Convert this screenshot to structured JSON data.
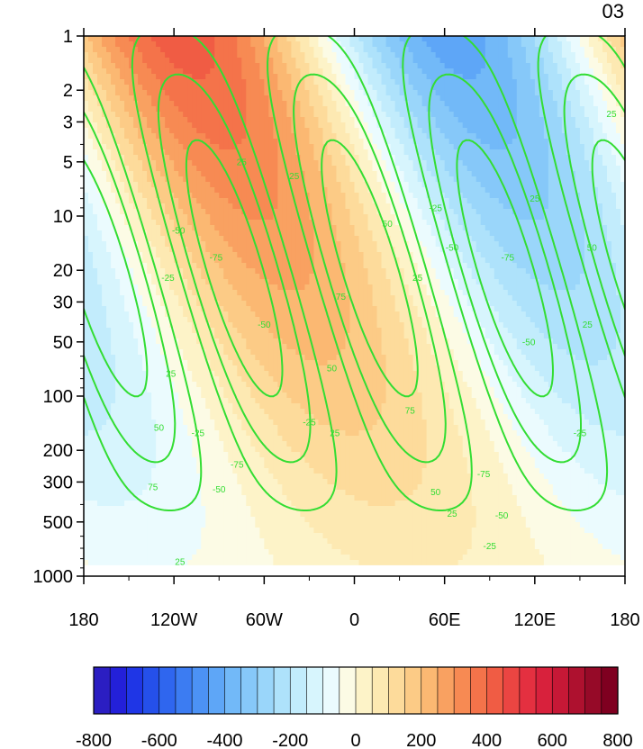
{
  "chart_data": {
    "type": "heatmap",
    "title": "",
    "panel_label": "03",
    "xlabel": "",
    "ylabel": "",
    "x_range": [
      -180,
      180
    ],
    "y_range": [
      1000,
      1
    ],
    "y_scale": "log",
    "y_reversed": true,
    "x_ticks": [
      {
        "value": -180,
        "label": "180"
      },
      {
        "value": -120,
        "label": "120W"
      },
      {
        "value": -60,
        "label": "60W"
      },
      {
        "value": 0,
        "label": "0"
      },
      {
        "value": 60,
        "label": "60E"
      },
      {
        "value": 120,
        "label": "120E"
      },
      {
        "value": 180,
        "label": "180"
      }
    ],
    "y_ticks": [
      {
        "value": 1,
        "label": "1"
      },
      {
        "value": 2,
        "label": "2"
      },
      {
        "value": 3,
        "label": "3"
      },
      {
        "value": 5,
        "label": "5"
      },
      {
        "value": 10,
        "label": "10"
      },
      {
        "value": 20,
        "label": "20"
      },
      {
        "value": 30,
        "label": "30"
      },
      {
        "value": 50,
        "label": "50"
      },
      {
        "value": 100,
        "label": "100"
      },
      {
        "value": 200,
        "label": "200"
      },
      {
        "value": 300,
        "label": "300"
      },
      {
        "value": 500,
        "label": "500"
      },
      {
        "value": 1000,
        "label": "1000"
      }
    ],
    "shading_levels": [
      -800,
      -750,
      -700,
      -650,
      -600,
      -550,
      -500,
      -450,
      -400,
      -350,
      -300,
      -250,
      -200,
      -150,
      -100,
      -50,
      0,
      50,
      100,
      150,
      200,
      250,
      300,
      350,
      400,
      450,
      500,
      550,
      600,
      650,
      700,
      750,
      800
    ],
    "colorbar_labels": [
      "-800",
      "-600",
      "-400",
      "-200",
      "0",
      "200",
      "400",
      "600",
      "800"
    ],
    "colorbar_colors": [
      "#2b1ec2",
      "#2320d9",
      "#1f36e6",
      "#2550ea",
      "#2f66ef",
      "#3c7cf2",
      "#4c92f5",
      "#5ea6f7",
      "#72b9f8",
      "#86c8f9",
      "#9ad6fa",
      "#aee2fb",
      "#c2ecfc",
      "#d7f5fd",
      "#ebfbfe",
      "#fcfbe5",
      "#fdf3c8",
      "#fde9b2",
      "#fddb9b",
      "#fccb86",
      "#fbb872",
      "#f9a161",
      "#f78a53",
      "#f4734a",
      "#f05c44",
      "#eb4542",
      "#e43040",
      "#d8213c",
      "#c61836",
      "#ae112f",
      "#960a28",
      "#7f0020"
    ],
    "shading_field": {
      "description_of_model": "z = A * sin(lon - phase(p)) with amplitude decreasing with pressure",
      "max_amplitude_top": 430,
      "min_amplitude_bottom": 50
    },
    "contour_levels": [
      -75,
      -50,
      -25,
      25,
      50,
      75
    ],
    "contour_style": {
      "positive": "solid",
      "negative": "dashed",
      "color": "#33dd33"
    },
    "contour_labels": [
      {
        "text": "25",
        "lon": -122,
        "p": 75
      },
      {
        "text": "50",
        "lon": -130,
        "p": 150
      },
      {
        "text": "75",
        "lon": -134,
        "p": 320
      },
      {
        "text": "25",
        "lon": -116,
        "p": 830
      },
      {
        "text": "-25",
        "lon": -124,
        "p": 22
      },
      {
        "text": "-50",
        "lon": -117,
        "p": 12
      },
      {
        "text": "-75",
        "lon": -92,
        "p": 17
      },
      {
        "text": "-50",
        "lon": -60,
        "p": 40
      },
      {
        "text": "-25",
        "lon": -30,
        "p": 140
      },
      {
        "text": "-25",
        "lon": -104,
        "p": 160
      },
      {
        "text": "-75",
        "lon": -78,
        "p": 240
      },
      {
        "text": "-50",
        "lon": -90,
        "p": 330
      },
      {
        "text": "25",
        "lon": -75,
        "p": 5
      },
      {
        "text": "25",
        "lon": -40,
        "p": 6
      },
      {
        "text": "75",
        "lon": -9,
        "p": 28
      },
      {
        "text": "50",
        "lon": -15,
        "p": 70
      },
      {
        "text": "25",
        "lon": -13,
        "p": 160
      },
      {
        "text": "50",
        "lon": 22,
        "p": 11
      },
      {
        "text": "25",
        "lon": 42,
        "p": 22
      },
      {
        "text": "75",
        "lon": 37,
        "p": 120
      },
      {
        "text": "50",
        "lon": 54,
        "p": 340
      },
      {
        "text": "25",
        "lon": 65,
        "p": 450
      },
      {
        "text": "-25",
        "lon": 54,
        "p": 9
      },
      {
        "text": "-50",
        "lon": 65,
        "p": 15
      },
      {
        "text": "-75",
        "lon": 102,
        "p": 17
      },
      {
        "text": "-50",
        "lon": 116,
        "p": 50
      },
      {
        "text": "-25",
        "lon": 150,
        "p": 160
      },
      {
        "text": "-75",
        "lon": 86,
        "p": 270
      },
      {
        "text": "-50",
        "lon": 98,
        "p": 460
      },
      {
        "text": "-25",
        "lon": 90,
        "p": 680
      },
      {
        "text": "25",
        "lon": 120,
        "p": 8
      },
      {
        "text": "25",
        "lon": 171,
        "p": 2.7
      },
      {
        "text": "50",
        "lon": 158,
        "p": 15
      },
      {
        "text": "25",
        "lon": 155,
        "p": 40
      }
    ],
    "grid": false,
    "legend": "colorbar-bottom"
  }
}
